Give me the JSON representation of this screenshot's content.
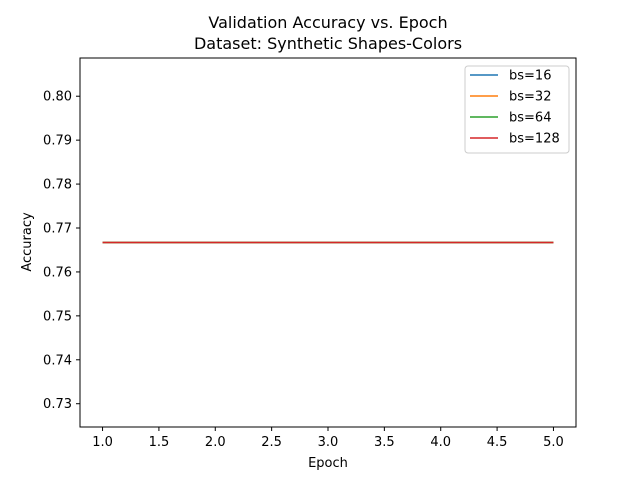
{
  "chart_data": {
    "type": "line",
    "title": "Validation Accuracy vs. Epoch",
    "subtitle": "Dataset: Synthetic Shapes-Colors",
    "xlabel": "Epoch",
    "ylabel": "Accuracy",
    "xlim": [
      0.8,
      5.2
    ],
    "ylim": [
      0.7247,
      0.8087
    ],
    "xticks": [
      1.0,
      1.5,
      2.0,
      2.5,
      3.0,
      3.5,
      4.0,
      4.5,
      5.0
    ],
    "xtick_labels": [
      "1.0",
      "1.5",
      "2.0",
      "2.5",
      "3.0",
      "3.5",
      "4.0",
      "4.5",
      "5.0"
    ],
    "yticks": [
      0.73,
      0.74,
      0.75,
      0.76,
      0.77,
      0.78,
      0.79,
      0.8
    ],
    "ytick_labels": [
      "0.73",
      "0.74",
      "0.75",
      "0.76",
      "0.77",
      "0.78",
      "0.79",
      "0.80"
    ],
    "grid": false,
    "legend_position": "top-right",
    "x": [
      1,
      2,
      3,
      4,
      5
    ],
    "series": [
      {
        "name": "bs=16",
        "color": "#1f77b4",
        "values": [
          0.7667,
          0.7667,
          0.7667,
          0.7667,
          0.7667
        ]
      },
      {
        "name": "bs=32",
        "color": "#ff7f0e",
        "values": [
          0.7667,
          0.7667,
          0.7667,
          0.7667,
          0.7667
        ]
      },
      {
        "name": "bs=64",
        "color": "#2ca02c",
        "values": [
          0.7667,
          0.7667,
          0.7667,
          0.7667,
          0.7667
        ]
      },
      {
        "name": "bs=128",
        "color": "#d62728",
        "values": [
          0.7667,
          0.7667,
          0.7667,
          0.7667,
          0.7667
        ]
      }
    ]
  }
}
